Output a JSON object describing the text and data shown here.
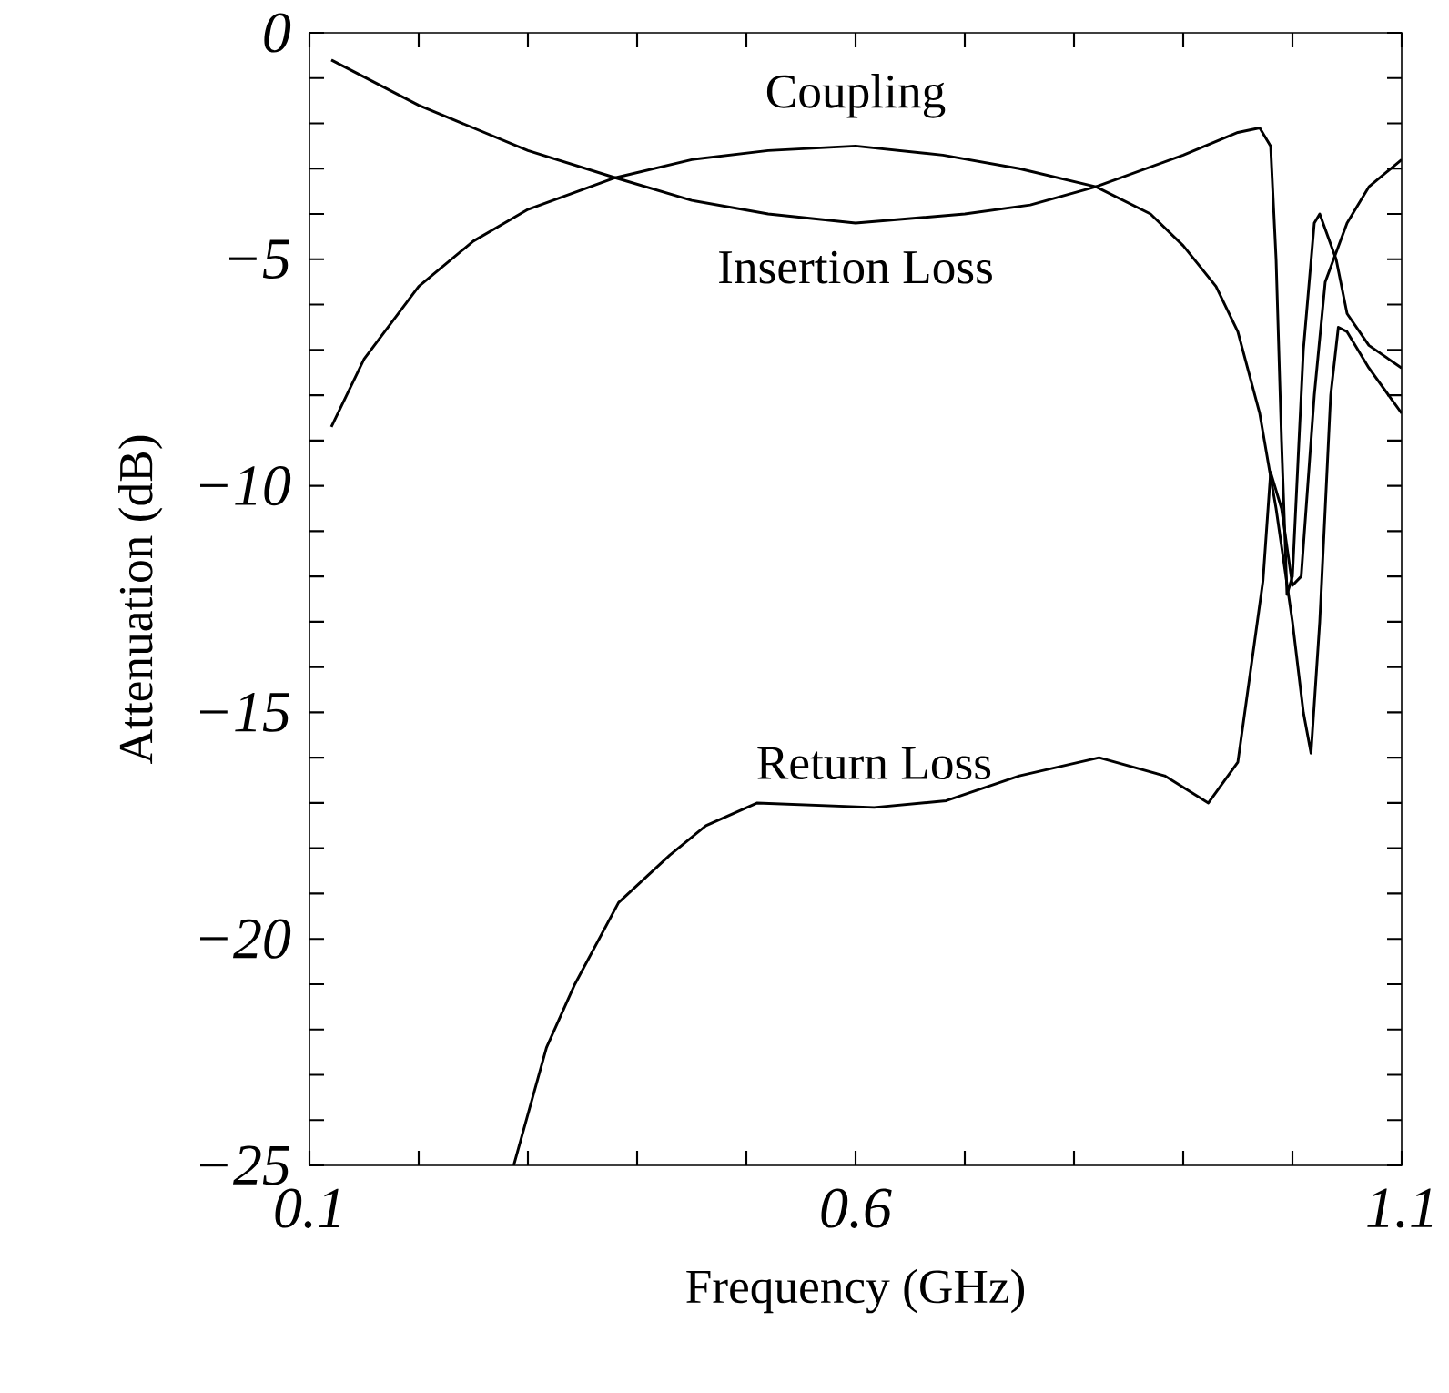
{
  "chart_data": {
    "type": "line",
    "xlabel": "Frequency (GHz)",
    "ylabel": "Attenuation (dB)",
    "xlim": [
      0.1,
      1.1
    ],
    "ylim": [
      -25,
      0
    ],
    "xticks": [
      {
        "value": 0.1,
        "label": "0.1"
      },
      {
        "value": 0.2,
        "label": null
      },
      {
        "value": 0.3,
        "label": null
      },
      {
        "value": 0.4,
        "label": null
      },
      {
        "value": 0.5,
        "label": null
      },
      {
        "value": 0.6,
        "label": "0.6"
      },
      {
        "value": 0.7,
        "label": null
      },
      {
        "value": 0.8,
        "label": null
      },
      {
        "value": 0.9,
        "label": null
      },
      {
        "value": 1.0,
        "label": null
      },
      {
        "value": 1.1,
        "label": "1.1"
      }
    ],
    "yticks": [
      {
        "value": 0,
        "label": "0"
      },
      {
        "value": -1,
        "label": null
      },
      {
        "value": -2,
        "label": null
      },
      {
        "value": -3,
        "label": null
      },
      {
        "value": -4,
        "label": null
      },
      {
        "value": -5,
        "label": "−5"
      },
      {
        "value": -6,
        "label": null
      },
      {
        "value": -7,
        "label": null
      },
      {
        "value": -8,
        "label": null
      },
      {
        "value": -9,
        "label": null
      },
      {
        "value": -10,
        "label": "−10"
      },
      {
        "value": -11,
        "label": null
      },
      {
        "value": -12,
        "label": null
      },
      {
        "value": -13,
        "label": null
      },
      {
        "value": -14,
        "label": null
      },
      {
        "value": -15,
        "label": "−15"
      },
      {
        "value": -16,
        "label": null
      },
      {
        "value": -17,
        "label": null
      },
      {
        "value": -18,
        "label": null
      },
      {
        "value": -19,
        "label": null
      },
      {
        "value": -20,
        "label": "−20"
      },
      {
        "value": -21,
        "label": null
      },
      {
        "value": -22,
        "label": null
      },
      {
        "value": -23,
        "label": null
      },
      {
        "value": -24,
        "label": null
      },
      {
        "value": -25,
        "label": "−25"
      }
    ],
    "grid": false,
    "marker": "none",
    "line_style": "solid",
    "series": [
      {
        "name": "Insertion Loss",
        "color": "#000000",
        "x": [
          0.12,
          0.2,
          0.3,
          0.38,
          0.45,
          0.52,
          0.6,
          0.7,
          0.76,
          0.82,
          0.9,
          0.95,
          0.97,
          0.98,
          0.985,
          0.99,
          0.995,
          1.0,
          1.01,
          1.02,
          1.025,
          1.04,
          1.05,
          1.07,
          1.1
        ],
        "values": [
          -0.6,
          -1.6,
          -2.6,
          -3.2,
          -3.7,
          -4.0,
          -4.2,
          -4.0,
          -3.8,
          -3.4,
          -2.7,
          -2.2,
          -2.1,
          -2.5,
          -5,
          -9,
          -12.4,
          -12,
          -7,
          -4.2,
          -4.0,
          -5.0,
          -6.2,
          -6.9,
          -7.4
        ]
      },
      {
        "name": "Coupling",
        "color": "#000000",
        "x": [
          0.12,
          0.15,
          0.2,
          0.25,
          0.3,
          0.38,
          0.45,
          0.52,
          0.6,
          0.68,
          0.75,
          0.82,
          0.87,
          0.9,
          0.93,
          0.95,
          0.97,
          0.985,
          1.0,
          1.01,
          1.017,
          1.025,
          1.035,
          1.042,
          1.05,
          1.07,
          1.1
        ],
        "values": [
          -8.7,
          -7.2,
          -5.6,
          -4.6,
          -3.9,
          -3.2,
          -2.8,
          -2.6,
          -2.5,
          -2.7,
          -3.0,
          -3.4,
          -4.0,
          -4.7,
          -5.6,
          -6.6,
          -8.4,
          -10.5,
          -13,
          -15,
          -15.9,
          -13,
          -8,
          -6.5,
          -6.6,
          -7.4,
          -8.4
        ]
      },
      {
        "name": "Return Loss",
        "color": "#000000",
        "x": [
          0.287,
          0.317,
          0.343,
          0.383,
          0.43,
          0.463,
          0.51,
          0.617,
          0.683,
          0.75,
          0.823,
          0.883,
          0.923,
          0.95,
          0.965,
          0.973,
          0.98,
          0.99,
          1.0,
          1.008,
          1.02,
          1.03,
          1.05,
          1.07,
          1.1
        ],
        "values": [
          -25,
          -22.4,
          -21.0,
          -19.2,
          -18.15,
          -17.5,
          -17.0,
          -17.1,
          -16.95,
          -16.4,
          -16.0,
          -16.4,
          -17.0,
          -16.1,
          -13.5,
          -12.1,
          -9.7,
          -10.5,
          -12.2,
          -12,
          -8,
          -5.5,
          -4.2,
          -3.4,
          -2.8
        ]
      }
    ]
  }
}
